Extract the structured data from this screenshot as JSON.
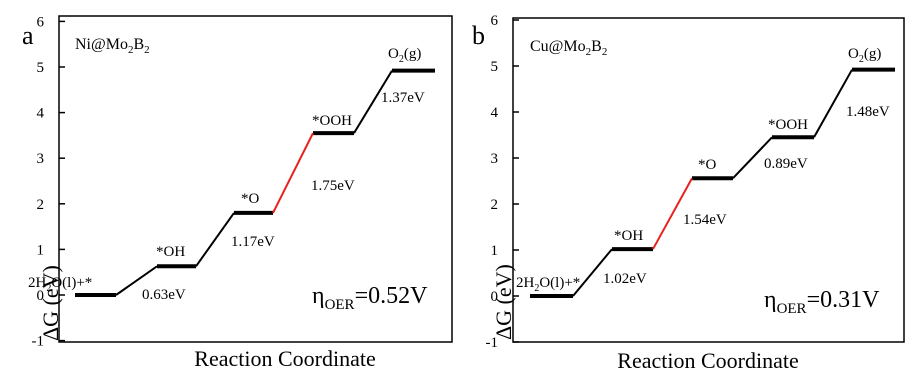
{
  "colors": {
    "rate_limiting": "#e8221f",
    "step": "#000000",
    "frame": "#000000"
  },
  "chart_data": [
    {
      "type": "line",
      "panel_label": "a",
      "catalyst": {
        "base": "Ni@Mo",
        "sub1": "2",
        "mid": "B",
        "sub2": "2"
      },
      "ylabel": "ΔG (eV)",
      "xlabel": "Reaction Coordinate",
      "ylim": [
        -1,
        6
      ],
      "yticks": [
        "-1",
        "0",
        "1",
        "2",
        "3",
        "4",
        "5",
        "6"
      ],
      "grid": false,
      "states": [
        {
          "name": "2H2O(l)+*",
          "label": {
            "pre": "2H",
            "sub": "2",
            "post": "O(l)+*"
          },
          "energy": 0.0
        },
        {
          "name": "*OH",
          "label": {
            "pre": "*OH",
            "sub": "",
            "post": ""
          },
          "energy": 0.63
        },
        {
          "name": "*O",
          "label": {
            "pre": "*O",
            "sub": "",
            "post": ""
          },
          "energy": 1.8
        },
        {
          "name": "*OOH",
          "label": {
            "pre": "*OOH",
            "sub": "",
            "post": ""
          },
          "energy": 3.55
        },
        {
          "name": "O2(g)",
          "label": {
            "pre": "O",
            "sub": "2",
            "post": "(g)"
          },
          "energy": 4.92
        }
      ],
      "steps": [
        "0.63eV",
        "1.17eV",
        "1.75eV",
        "1.37eV"
      ],
      "rate_limiting_step": 3,
      "overpotential": {
        "symbol": "η",
        "sub": "OER",
        "value": "=0.52V"
      }
    },
    {
      "type": "line",
      "panel_label": "b",
      "catalyst": {
        "base": "Cu@Mo",
        "sub1": "2",
        "mid": "B",
        "sub2": "2"
      },
      "ylabel": "ΔG (eV)",
      "xlabel": "Reaction Coordinate",
      "ylim": [
        -1,
        6
      ],
      "yticks": [
        "-1",
        "0",
        "1",
        "2",
        "3",
        "4",
        "5",
        "6"
      ],
      "grid": false,
      "states": [
        {
          "name": "2H2O(l)+*",
          "label": {
            "pre": "2H",
            "sub": "2",
            "post": "O(l)+*"
          },
          "energy": 0.0
        },
        {
          "name": "*OH",
          "label": {
            "pre": "*OH",
            "sub": "",
            "post": ""
          },
          "energy": 1.02
        },
        {
          "name": "*O",
          "label": {
            "pre": "*O",
            "sub": "",
            "post": ""
          },
          "energy": 2.56
        },
        {
          "name": "*OOH",
          "label": {
            "pre": "*OOH",
            "sub": "",
            "post": ""
          },
          "energy": 3.45
        },
        {
          "name": "O2(g)",
          "label": {
            "pre": "O",
            "sub": "2",
            "post": "(g)"
          },
          "energy": 4.92
        }
      ],
      "steps": [
        "1.02eV",
        "1.54eV",
        "0.89eV",
        "1.48eV"
      ],
      "rate_limiting_step": 2,
      "overpotential": {
        "symbol": "η",
        "sub": "OER",
        "value": "=0.31V"
      }
    }
  ]
}
